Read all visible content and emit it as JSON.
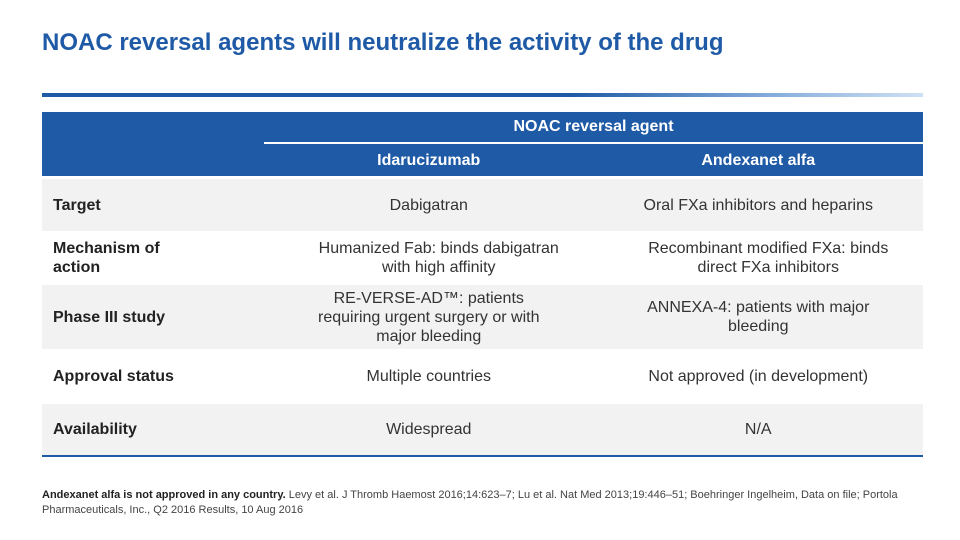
{
  "title": "NOAC reversal agents will neutralize the activity of the drug",
  "table": {
    "group_header": "NOAC reversal agent",
    "columns": [
      "Idarucizumab",
      "Andexanet alfa"
    ],
    "rows": [
      {
        "label": "Target",
        "c1": "Dabigatran",
        "c2": "Oral FXa inhibitors and heparins"
      },
      {
        "label": "Mechanism of action",
        "c1": "Humanized Fab: binds dabigatran with high affinity",
        "c2": "Recombinant modified FXa: binds direct FXa inhibitors"
      },
      {
        "label": "Phase III study",
        "c1": "RE-VERSE-AD™: patients requiring urgent surgery or with major bleeding",
        "c2": "ANNEXA-4: patients with major bleeding"
      },
      {
        "label": "Approval status",
        "c1": "Multiple countries",
        "c2": "Not approved (in development)"
      },
      {
        "label": "Availability",
        "c1": "Widespread",
        "c2": "N/A"
      }
    ]
  },
  "footnote": {
    "bold": "Andexanet alfa is not approved in any country.",
    "refs": "Levy et al. J Thromb Haemost 2016;14:623–7; Lu et al. Nat Med 2013;19:446–51; Boehringer Ingelheim, Data on file; Portola Pharmaceuticals, Inc., Q2 2016 Results, 10 Aug 2016"
  }
}
